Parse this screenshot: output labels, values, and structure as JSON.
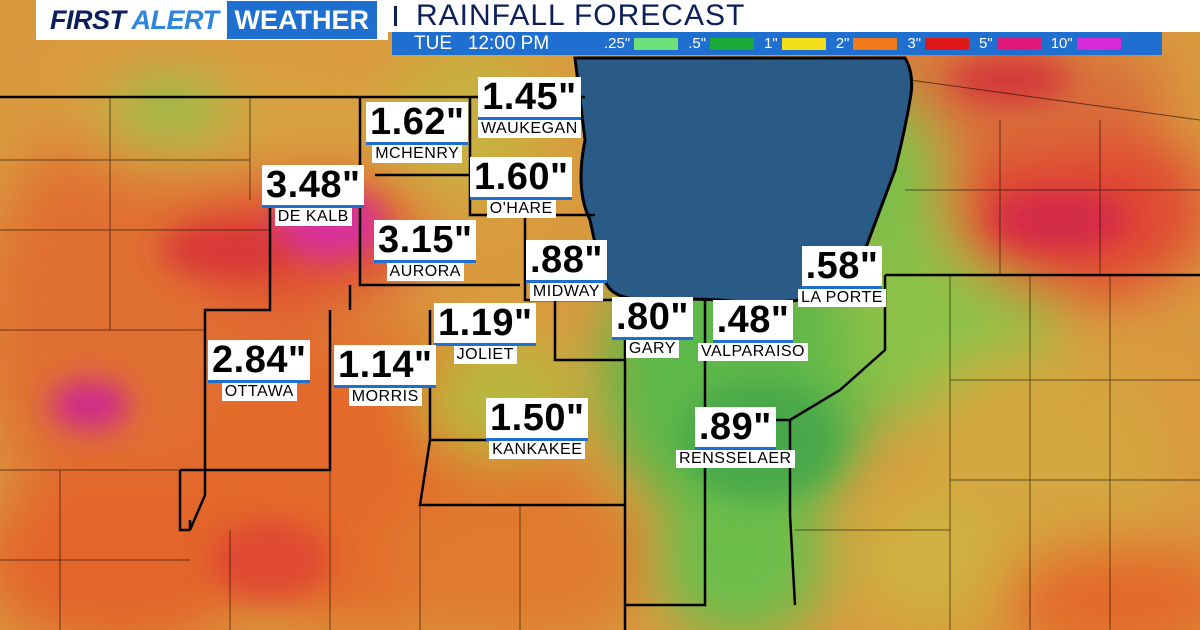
{
  "brand": {
    "first": "FIRST",
    "alert": "ALERT",
    "weather": "WEATHER"
  },
  "title": "RAINFALL FORECAST",
  "legend": {
    "time": "TUE   12:00 PM",
    "items": [
      {
        "label": ".25\"",
        "color": "#6ee07a"
      },
      {
        "label": ".5\"",
        "color": "#1aa836"
      },
      {
        "label": "1\"",
        "color": "#f4e01a"
      },
      {
        "label": "2\"",
        "color": "#f07a1a"
      },
      {
        "label": "3\"",
        "color": "#e01818"
      },
      {
        "label": "5\"",
        "color": "#e0187a"
      },
      {
        "label": "10\"",
        "color": "#d62ad6"
      }
    ]
  },
  "cities": [
    {
      "value": "1.45\"",
      "name": "WAUKEGAN"
    },
    {
      "value": "1.62\"",
      "name": "MCHENRY"
    },
    {
      "value": "3.48\"",
      "name": "DE KALB"
    },
    {
      "value": "1.60\"",
      "name": "O'HARE"
    },
    {
      "value": "3.15\"",
      "name": "AURORA"
    },
    {
      "value": ".88\"",
      "name": "MIDWAY"
    },
    {
      "value": ".58\"",
      "name": "LA PORTE"
    },
    {
      "value": "1.19\"",
      "name": "JOLIET"
    },
    {
      "value": ".80\"",
      "name": "GARY"
    },
    {
      "value": ".48\"",
      "name": "VALPARAISO"
    },
    {
      "value": "2.84\"",
      "name": "OTTAWA"
    },
    {
      "value": "1.14\"",
      "name": "MORRIS"
    },
    {
      "value": "1.50\"",
      "name": "KANKAKEE"
    },
    {
      "value": ".89\"",
      "name": "RENSSELAER"
    }
  ]
}
